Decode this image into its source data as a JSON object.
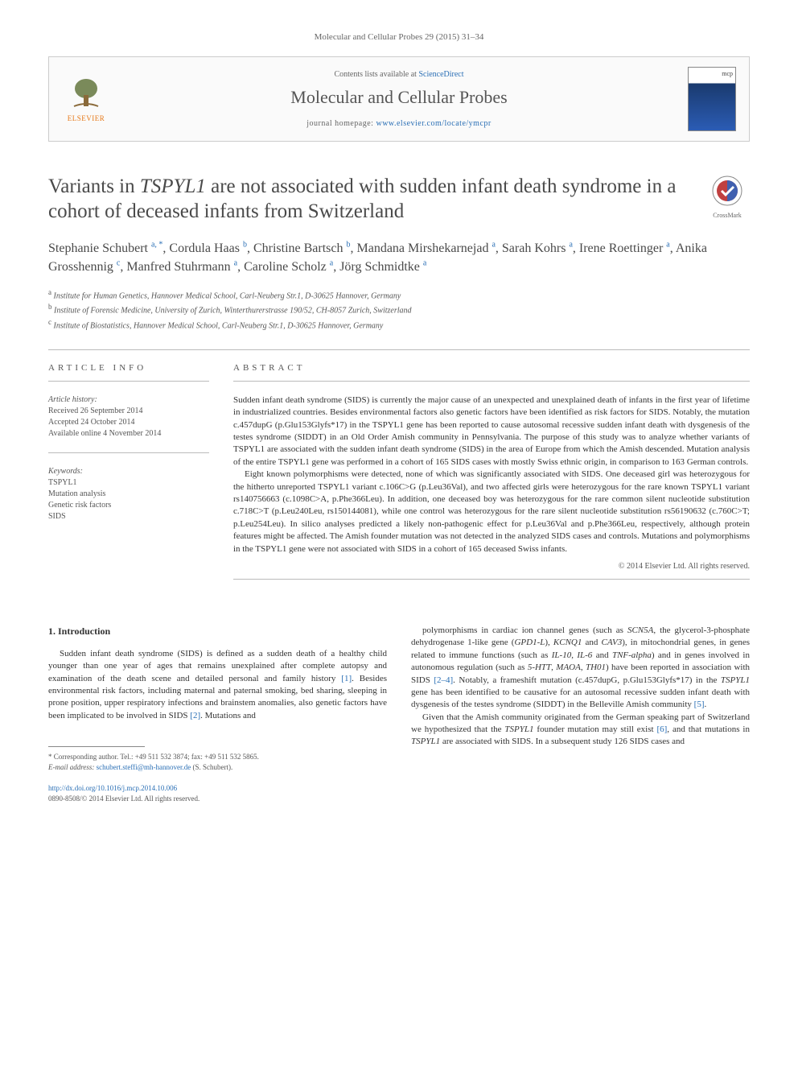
{
  "journal_ref": "Molecular and Cellular Probes 29 (2015) 31–34",
  "header": {
    "contents_prefix": "Contents lists available at ",
    "contents_link": "ScienceDirect",
    "journal_name": "Molecular and Cellular Probes",
    "homepage_prefix": "journal homepage: ",
    "homepage_url": "www.elsevier.com/locate/ymcpr",
    "publisher": "ELSEVIER"
  },
  "crossmark_label": "CrossMark",
  "title_pre": "Variants in ",
  "title_gene": "TSPYL1",
  "title_post": " are not associated with sudden infant death syndrome in a cohort of deceased infants from Switzerland",
  "authors_html": "Stephanie Schubert <sup>a, *</sup>, Cordula Haas <sup>b</sup>, Christine Bartsch <sup>b</sup>, Mandana Mirshekarnejad <sup>a</sup>, Sarah Kohrs <sup>a</sup>, Irene Roettinger <sup>a</sup>, Anika Grosshennig <sup>c</sup>, Manfred Stuhrmann <sup>a</sup>, Caroline Scholz <sup>a</sup>, Jörg Schmidtke <sup>a</sup>",
  "affiliations": {
    "a": "Institute for Human Genetics, Hannover Medical School, Carl-Neuberg Str.1, D-30625 Hannover, Germany",
    "b": "Institute of Forensic Medicine, University of Zurich, Winterthurerstrasse 190/52, CH-8057 Zurich, Switzerland",
    "c": "Institute of Biostatistics, Hannover Medical School, Carl-Neuberg Str.1, D-30625 Hannover, Germany"
  },
  "article_info": {
    "heading": "ARTICLE INFO",
    "history_label": "Article history:",
    "received": "Received 26 September 2014",
    "accepted": "Accepted 24 October 2014",
    "online": "Available online 4 November 2014",
    "keywords_label": "Keywords:",
    "keywords": [
      "TSPYL1",
      "Mutation analysis",
      "Genetic risk factors",
      "SIDS"
    ]
  },
  "abstract": {
    "heading": "ABSTRACT",
    "para1": "Sudden infant death syndrome (SIDS) is currently the major cause of an unexpected and unexplained death of infants in the first year of lifetime in industrialized countries. Besides environmental factors also genetic factors have been identified as risk factors for SIDS. Notably, the mutation c.457dupG (p.Glu153Glyfs*17) in the TSPYL1 gene has been reported to cause autosomal recessive sudden infant death with dysgenesis of the testes syndrome (SIDDT) in an Old Order Amish community in Pennsylvania. The purpose of this study was to analyze whether variants of TSPYL1 are associated with the sudden infant death syndrome (SIDS) in the area of Europe from which the Amish descended. Mutation analysis of the entire TSPYL1 gene was performed in a cohort of 165 SIDS cases with mostly Swiss ethnic origin, in comparison to 163 German controls.",
    "para2": "Eight known polymorphisms were detected, none of which was significantly associated with SIDS. One deceased girl was heterozygous for the hitherto unreported TSPYL1 variant c.106C>G (p.Leu36Val), and two affected girls were heterozygous for the rare known TSPYL1 variant rs140756663 (c.1098C>A, p.Phe366Leu). In addition, one deceased boy was heterozygous for the rare common silent nucleotide substitution c.718C>T (p.Leu240Leu, rs150144081), while one control was heterozygous for the rare silent nucleotide substitution rs56190632 (c.760C>T; p.Leu254Leu). In silico analyses predicted a likely non-pathogenic effect for p.Leu36Val and p.Phe366Leu, respectively, although protein features might be affected. The Amish founder mutation was not detected in the analyzed SIDS cases and controls. Mutations and polymorphisms in the TSPYL1 gene were not associated with SIDS in a cohort of 165 deceased Swiss infants.",
    "copyright": "© 2014 Elsevier Ltd. All rights reserved."
  },
  "body": {
    "section_heading": "1.  Introduction",
    "col1_p1": "Sudden infant death syndrome (SIDS) is defined as a sudden death of a healthy child younger than one year of ages that remains unexplained after complete autopsy and examination of the death scene and detailed personal and family history [1]. Besides environmental risk factors, including maternal and paternal smoking, bed sharing, sleeping in prone position, upper respiratory infections and brainstem anomalies, also genetic factors have been implicated to be involved in SIDS [2]. Mutations and",
    "col2_p1": "polymorphisms in cardiac ion channel genes (such as SCN5A, the glycerol-3-phosphate dehydrogenase 1-like gene (GPD1-L), KCNQ1 and CAV3), in mitochondrial genes, in genes related to immune functions (such as IL-10, IL-6 and TNF-alpha) and in genes involved in autonomous regulation (such as 5-HTT, MAOA, TH01) have been reported in association with SIDS [2–4]. Notably, a frameshift mutation (c.457dupG, p.Glu153Glyfs*17) in the TSPYL1 gene has been identified to be causative for an autosomal recessive sudden infant death with dysgenesis of the testes syndrome (SIDDT) in the Belleville Amish community [5].",
    "col2_p2": "Given that the Amish community originated from the German speaking part of Switzerland we hypothesized that the TSPYL1 founder mutation may still exist [6], and that mutations in TSPYL1 are associated with SIDS. In a subsequent study 126 SIDS cases and"
  },
  "footnotes": {
    "corresponding": "* Corresponding author. Tel.: +49 511 532 3874; fax: +49 511 532 5865.",
    "email_label": "E-mail address: ",
    "email": "schubert.steffi@mh-hannover.de",
    "email_suffix": " (S. Schubert)."
  },
  "footer": {
    "doi": "http://dx.doi.org/10.1016/j.mcp.2014.10.006",
    "issn": "0890-8508/© 2014 Elsevier Ltd. All rights reserved."
  },
  "colors": {
    "link": "#2a6fb5",
    "publisher": "#e67817",
    "text": "#333333",
    "muted": "#666666"
  }
}
